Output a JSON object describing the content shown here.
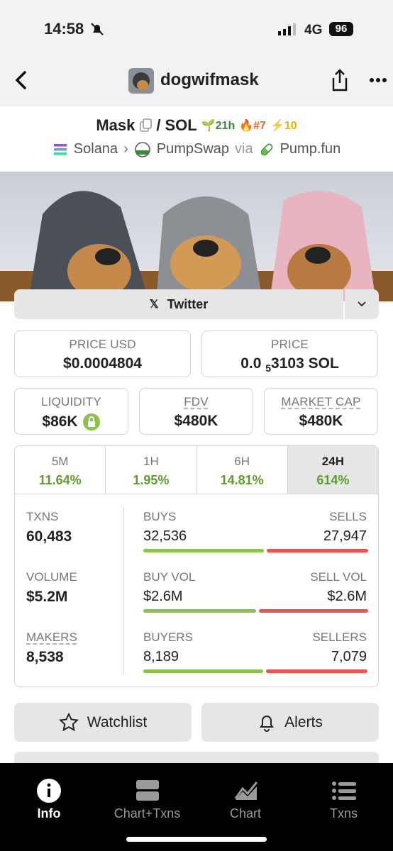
{
  "status": {
    "time": "14:58",
    "network": "4G",
    "battery": "96"
  },
  "header": {
    "title": "dogwifmask"
  },
  "pair": {
    "base": "Mask",
    "separator": "/",
    "quote": "SOL",
    "age": "21h",
    "rank": "#7",
    "boosts": "10"
  },
  "route": {
    "chain": "Solana",
    "dex": "PumpSwap",
    "via": "via",
    "launchpad": "Pump.fun"
  },
  "social": {
    "twitter": "Twitter"
  },
  "prices": [
    {
      "label": "PRICE USD",
      "value": "$0.0004804"
    },
    {
      "label": "PRICE",
      "value": "0.0",
      "subscript": "5",
      "value_rest": "3103 SOL"
    }
  ],
  "metrics": [
    {
      "label": "LIQUIDITY",
      "value": "$86K"
    },
    {
      "label": "FDV",
      "value": "$480K"
    },
    {
      "label": "MARKET CAP",
      "value": "$480K"
    }
  ],
  "timeframes": [
    {
      "label": "5M",
      "value": "11.64%"
    },
    {
      "label": "1H",
      "value": "1.95%"
    },
    {
      "label": "6H",
      "value": "14.81%"
    },
    {
      "label": "24H",
      "value": "614%"
    }
  ],
  "stats": {
    "left": [
      {
        "label": "TXNS",
        "value": "60,483"
      },
      {
        "label": "VOLUME",
        "value": "$5.2M"
      },
      {
        "label": "MAKERS",
        "value": "8,538"
      }
    ],
    "split": [
      {
        "left_label": "BUYS",
        "left_value": "32,536",
        "right_label": "SELLS",
        "right_value": "27,947"
      },
      {
        "left_label": "BUY VOL",
        "left_value": "$2.6M",
        "right_label": "SELL VOL",
        "right_value": "$2.6M"
      },
      {
        "left_label": "BUYERS",
        "left_value": "8,189",
        "right_label": "SELLERS",
        "right_value": "7,079"
      }
    ]
  },
  "actions": {
    "watchlist": "Watchlist",
    "alerts": "Alerts"
  },
  "tabs": [
    "Info",
    "Chart+Txns",
    "Chart",
    "Txns"
  ]
}
